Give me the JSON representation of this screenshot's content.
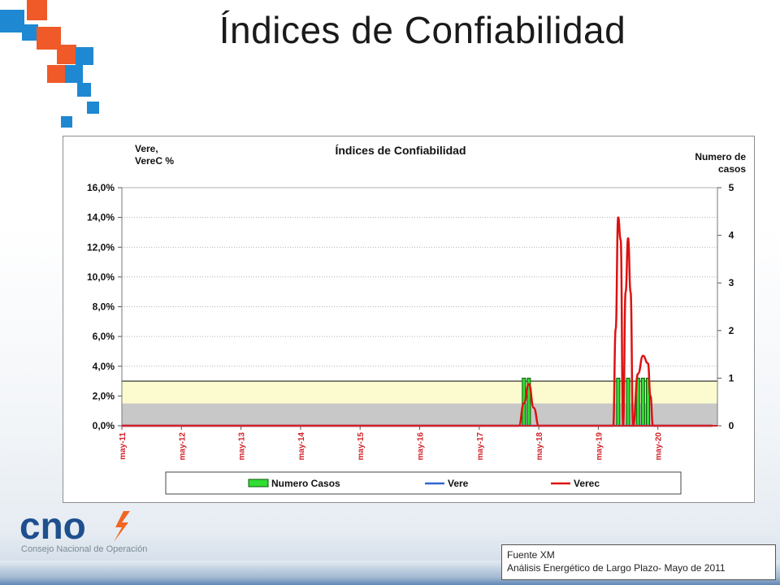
{
  "slide": {
    "title": "Índices de Confiabilidad",
    "logo_text": "cno",
    "logo_subtitle": "Consejo Nacional de Operación",
    "source_line1": "Fuente XM",
    "source_line2": "Análisis Energético de Largo Plazo- Mayo de 2011"
  },
  "colors": {
    "bar_fill": "#33dd33",
    "vere_line": "#3366cc",
    "verec_line": "#dd1111",
    "band_yellow": "#fbfbcf",
    "band_gray": "#c8c8c8",
    "deco_orange": "#ef5a28",
    "deco_blue": "#1e88d2",
    "logo_navy": "#1e4f8f",
    "logo_orange": "#f26522"
  },
  "chart_data": {
    "type": "line",
    "title": "Índices de Confiabilidad",
    "ylabel_left": "Vere,\nVereC %",
    "ylabel_right": "Numero de\ncasos",
    "ylim_left": [
      0,
      0.16
    ],
    "yticks_left": [
      "0,0%",
      "2,0%",
      "4,0%",
      "6,0%",
      "8,0%",
      "10,0%",
      "12,0%",
      "14,0%",
      "16,0%"
    ],
    "ylim_right": [
      0,
      5
    ],
    "yticks_right": [
      "0",
      "1",
      "2",
      "3",
      "4",
      "5"
    ],
    "x_tick_labels": [
      "may-11",
      "may-12",
      "may-13",
      "may-14",
      "may-15",
      "may-16",
      "may-17",
      "may-18",
      "may-19",
      "may-20"
    ],
    "xlim_months": [
      0,
      120
    ],
    "bands": [
      {
        "from": 0,
        "to": 0.015,
        "color": "gray"
      },
      {
        "from": 0.015,
        "to": 0.03,
        "color": "yellow"
      }
    ],
    "grid": true,
    "legend_position": "bottom",
    "series": [
      {
        "name": "Numero Casos",
        "kind": "bar",
        "axis": "right",
        "points": [
          [
            81,
            1
          ],
          [
            82,
            1
          ],
          [
            100,
            1
          ],
          [
            102,
            1
          ],
          [
            104,
            1
          ],
          [
            105,
            1
          ],
          [
            106,
            1
          ]
        ]
      },
      {
        "name": "Vere",
        "kind": "line",
        "axis": "left",
        "points": [
          [
            0,
            0
          ],
          [
            119,
            0
          ]
        ]
      },
      {
        "name": "Verec",
        "kind": "line",
        "axis": "left",
        "points": [
          [
            0,
            0
          ],
          [
            80,
            0
          ],
          [
            81,
            0.015
          ],
          [
            82,
            0.028
          ],
          [
            83,
            0.012
          ],
          [
            84,
            0
          ],
          [
            99,
            0
          ],
          [
            99.5,
            0.065
          ],
          [
            100,
            0.14
          ],
          [
            100.5,
            0.125
          ],
          [
            101,
            0
          ],
          [
            101.5,
            0.09
          ],
          [
            102,
            0.126
          ],
          [
            102.5,
            0.09
          ],
          [
            103,
            0
          ],
          [
            104,
            0.035
          ],
          [
            105,
            0.047
          ],
          [
            106,
            0.042
          ],
          [
            106.5,
            0.02
          ],
          [
            107,
            0
          ],
          [
            119,
            0
          ]
        ]
      }
    ]
  }
}
